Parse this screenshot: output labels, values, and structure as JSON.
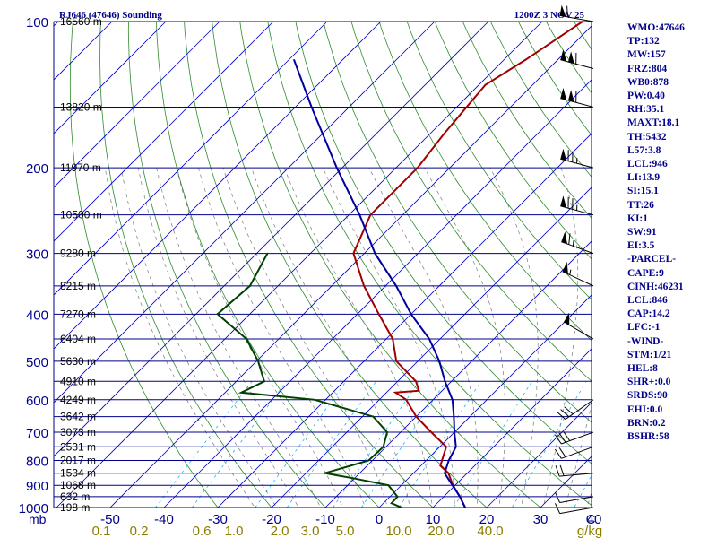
{
  "header": {
    "title": "RJ646 (47646) Sounding",
    "time": "1200Z  3 NOV 25"
  },
  "chart_data": {
    "type": "line",
    "title": "RJ646 (47646) Sounding",
    "pressure_ticks": [
      "100",
      "200",
      "300",
      "400",
      "500",
      "600",
      "700",
      "800",
      "900",
      "1000"
    ],
    "pressure_unit": "mb",
    "temperature_ticks": [
      "-50",
      "-40",
      "-30",
      "-20",
      "-10",
      "0",
      "10",
      "20",
      "30",
      "40",
      "C"
    ],
    "mixing_ratio_ticks": [
      "0.1",
      "0.2",
      "0.6",
      "1.0",
      "2.0",
      "3.0",
      "5.0",
      "10.0",
      "20.0",
      "40.0",
      "g/kg"
    ],
    "height_labels": [
      {
        "p": 100,
        "label": "16560 m"
      },
      {
        "p": 150,
        "label": "13820 m"
      },
      {
        "p": 200,
        "label": "11970 m"
      },
      {
        "p": 250,
        "label": "10500 m"
      },
      {
        "p": 300,
        "label": "9280 m"
      },
      {
        "p": 350,
        "label": "8215 m"
      },
      {
        "p": 400,
        "label": "7270 m"
      },
      {
        "p": 450,
        "label": "6404 m"
      },
      {
        "p": 500,
        "label": "5630 m"
      },
      {
        "p": 550,
        "label": "4910 m"
      },
      {
        "p": 600,
        "label": "4249 m"
      },
      {
        "p": 650,
        "label": "3642 m"
      },
      {
        "p": 700,
        "label": "3073 m"
      },
      {
        "p": 750,
        "label": "2531 m"
      },
      {
        "p": 800,
        "label": "2017 m"
      },
      {
        "p": 850,
        "label": "1534 m"
      },
      {
        "p": 900,
        "label": "1068 m"
      },
      {
        "p": 950,
        "label": "632 m"
      },
      {
        "p": 1000,
        "label": "198 m"
      }
    ],
    "series": [
      {
        "name": "Temperature",
        "color": "#a00000",
        "points": [
          [
            100,
            -52.5
          ],
          [
            120,
            -56
          ],
          [
            135,
            -58.8
          ],
          [
            170,
            -57.4
          ],
          [
            200,
            -56
          ],
          [
            250,
            -56
          ],
          [
            300,
            -52
          ],
          [
            350,
            -44
          ],
          [
            400,
            -36
          ],
          [
            450,
            -28.8
          ],
          [
            500,
            -24
          ],
          [
            550,
            -16.6
          ],
          [
            575,
            -14.3
          ],
          [
            580,
            -18.3
          ],
          [
            600,
            -15
          ],
          [
            650,
            -10
          ],
          [
            700,
            -4.3
          ],
          [
            750,
            1.2
          ],
          [
            820,
            3.6
          ],
          [
            850,
            6.5
          ],
          [
            900,
            9.6
          ],
          [
            950,
            13
          ],
          [
            1000,
            16
          ]
        ]
      },
      {
        "name": "Dew point",
        "color": "#004000",
        "points": [
          [
            300,
            -68
          ],
          [
            350,
            -65.2
          ],
          [
            400,
            -66
          ],
          [
            450,
            -56
          ],
          [
            500,
            -49.7
          ],
          [
            550,
            -44.8
          ],
          [
            580,
            -47
          ],
          [
            600,
            -32
          ],
          [
            650,
            -18
          ],
          [
            700,
            -12.5
          ],
          [
            750,
            -10.5
          ],
          [
            800,
            -10.7
          ],
          [
            850,
            -16.5
          ],
          [
            870,
            -10.4
          ],
          [
            900,
            -2.4
          ],
          [
            950,
            1.4
          ],
          [
            980,
            1.5
          ],
          [
            1000,
            4.2
          ]
        ]
      },
      {
        "name": "Parcel",
        "color": "#0000a0",
        "points": [
          [
            120,
            -99
          ],
          [
            150,
            -87
          ],
          [
            200,
            -71
          ],
          [
            250,
            -58
          ],
          [
            300,
            -48
          ],
          [
            350,
            -38
          ],
          [
            400,
            -30
          ],
          [
            450,
            -22
          ],
          [
            500,
            -16
          ],
          [
            550,
            -11.2
          ],
          [
            600,
            -6.4
          ],
          [
            650,
            -3
          ],
          [
            700,
            0
          ],
          [
            750,
            3
          ],
          [
            800,
            4.2
          ],
          [
            850,
            5.8
          ],
          [
            900,
            9.5
          ],
          [
            950,
            13
          ],
          [
            1000,
            16
          ]
        ]
      }
    ],
    "wind_barbs": [
      {
        "p": 100,
        "dir": 280,
        "spd": 60
      },
      {
        "p": 125,
        "dir": 285,
        "spd": 110
      },
      {
        "p": 150,
        "dir": 285,
        "spd": 110
      },
      {
        "p": 200,
        "dir": 285,
        "spd": 75
      },
      {
        "p": 250,
        "dir": 285,
        "spd": 75
      },
      {
        "p": 300,
        "dir": 290,
        "spd": 65
      },
      {
        "p": 350,
        "dir": 295,
        "spd": 55
      },
      {
        "p": 450,
        "dir": 300,
        "spd": 50
      },
      {
        "p": 600,
        "dir": 235,
        "spd": 30
      },
      {
        "p": 700,
        "dir": 250,
        "spd": 30
      },
      {
        "p": 750,
        "dir": 250,
        "spd": 20
      },
      {
        "p": 850,
        "dir": 265,
        "spd": 20
      },
      {
        "p": 950,
        "dir": 260,
        "spd": 10
      },
      {
        "p": 1000,
        "dir": 260,
        "spd": 10
      }
    ]
  },
  "indices": [
    "WMO:47646",
    "TP:132",
    "MW:157",
    "FRZ:804",
    "WB0:878",
    "PW:0.40",
    "RH:35.1",
    "MAXT:18.1",
    "TH:5432",
    "L57:3.8",
    "LCL:946",
    "LI:13.9",
    "SI:15.1",
    "TT:26",
    "KI:1",
    "SW:91",
    "EI:3.5",
    "-PARCEL-",
    "CAPE:9",
    "CINH:46231",
    "LCL:846",
    "CAP:14.2",
    "LFC:-1",
    "-WIND-",
    "STM:1/21",
    "HEL:8",
    "SHR+:0.0",
    "SRDS:90",
    "EHI:0.0",
    "BRN:0.2",
    "BSHR:58"
  ],
  "colors": {
    "isobar": "#00008b",
    "isotherm": "#0000cd",
    "dry_adiabat": "#2e8b2e",
    "moist_adiabat": "#7a7a7a",
    "mixing_ratio": "#00aaee",
    "mixing_ratio_label": "#8b7d00",
    "temperature": "#a00000",
    "dewpoint": "#004000",
    "parcel": "#0000a0"
  }
}
